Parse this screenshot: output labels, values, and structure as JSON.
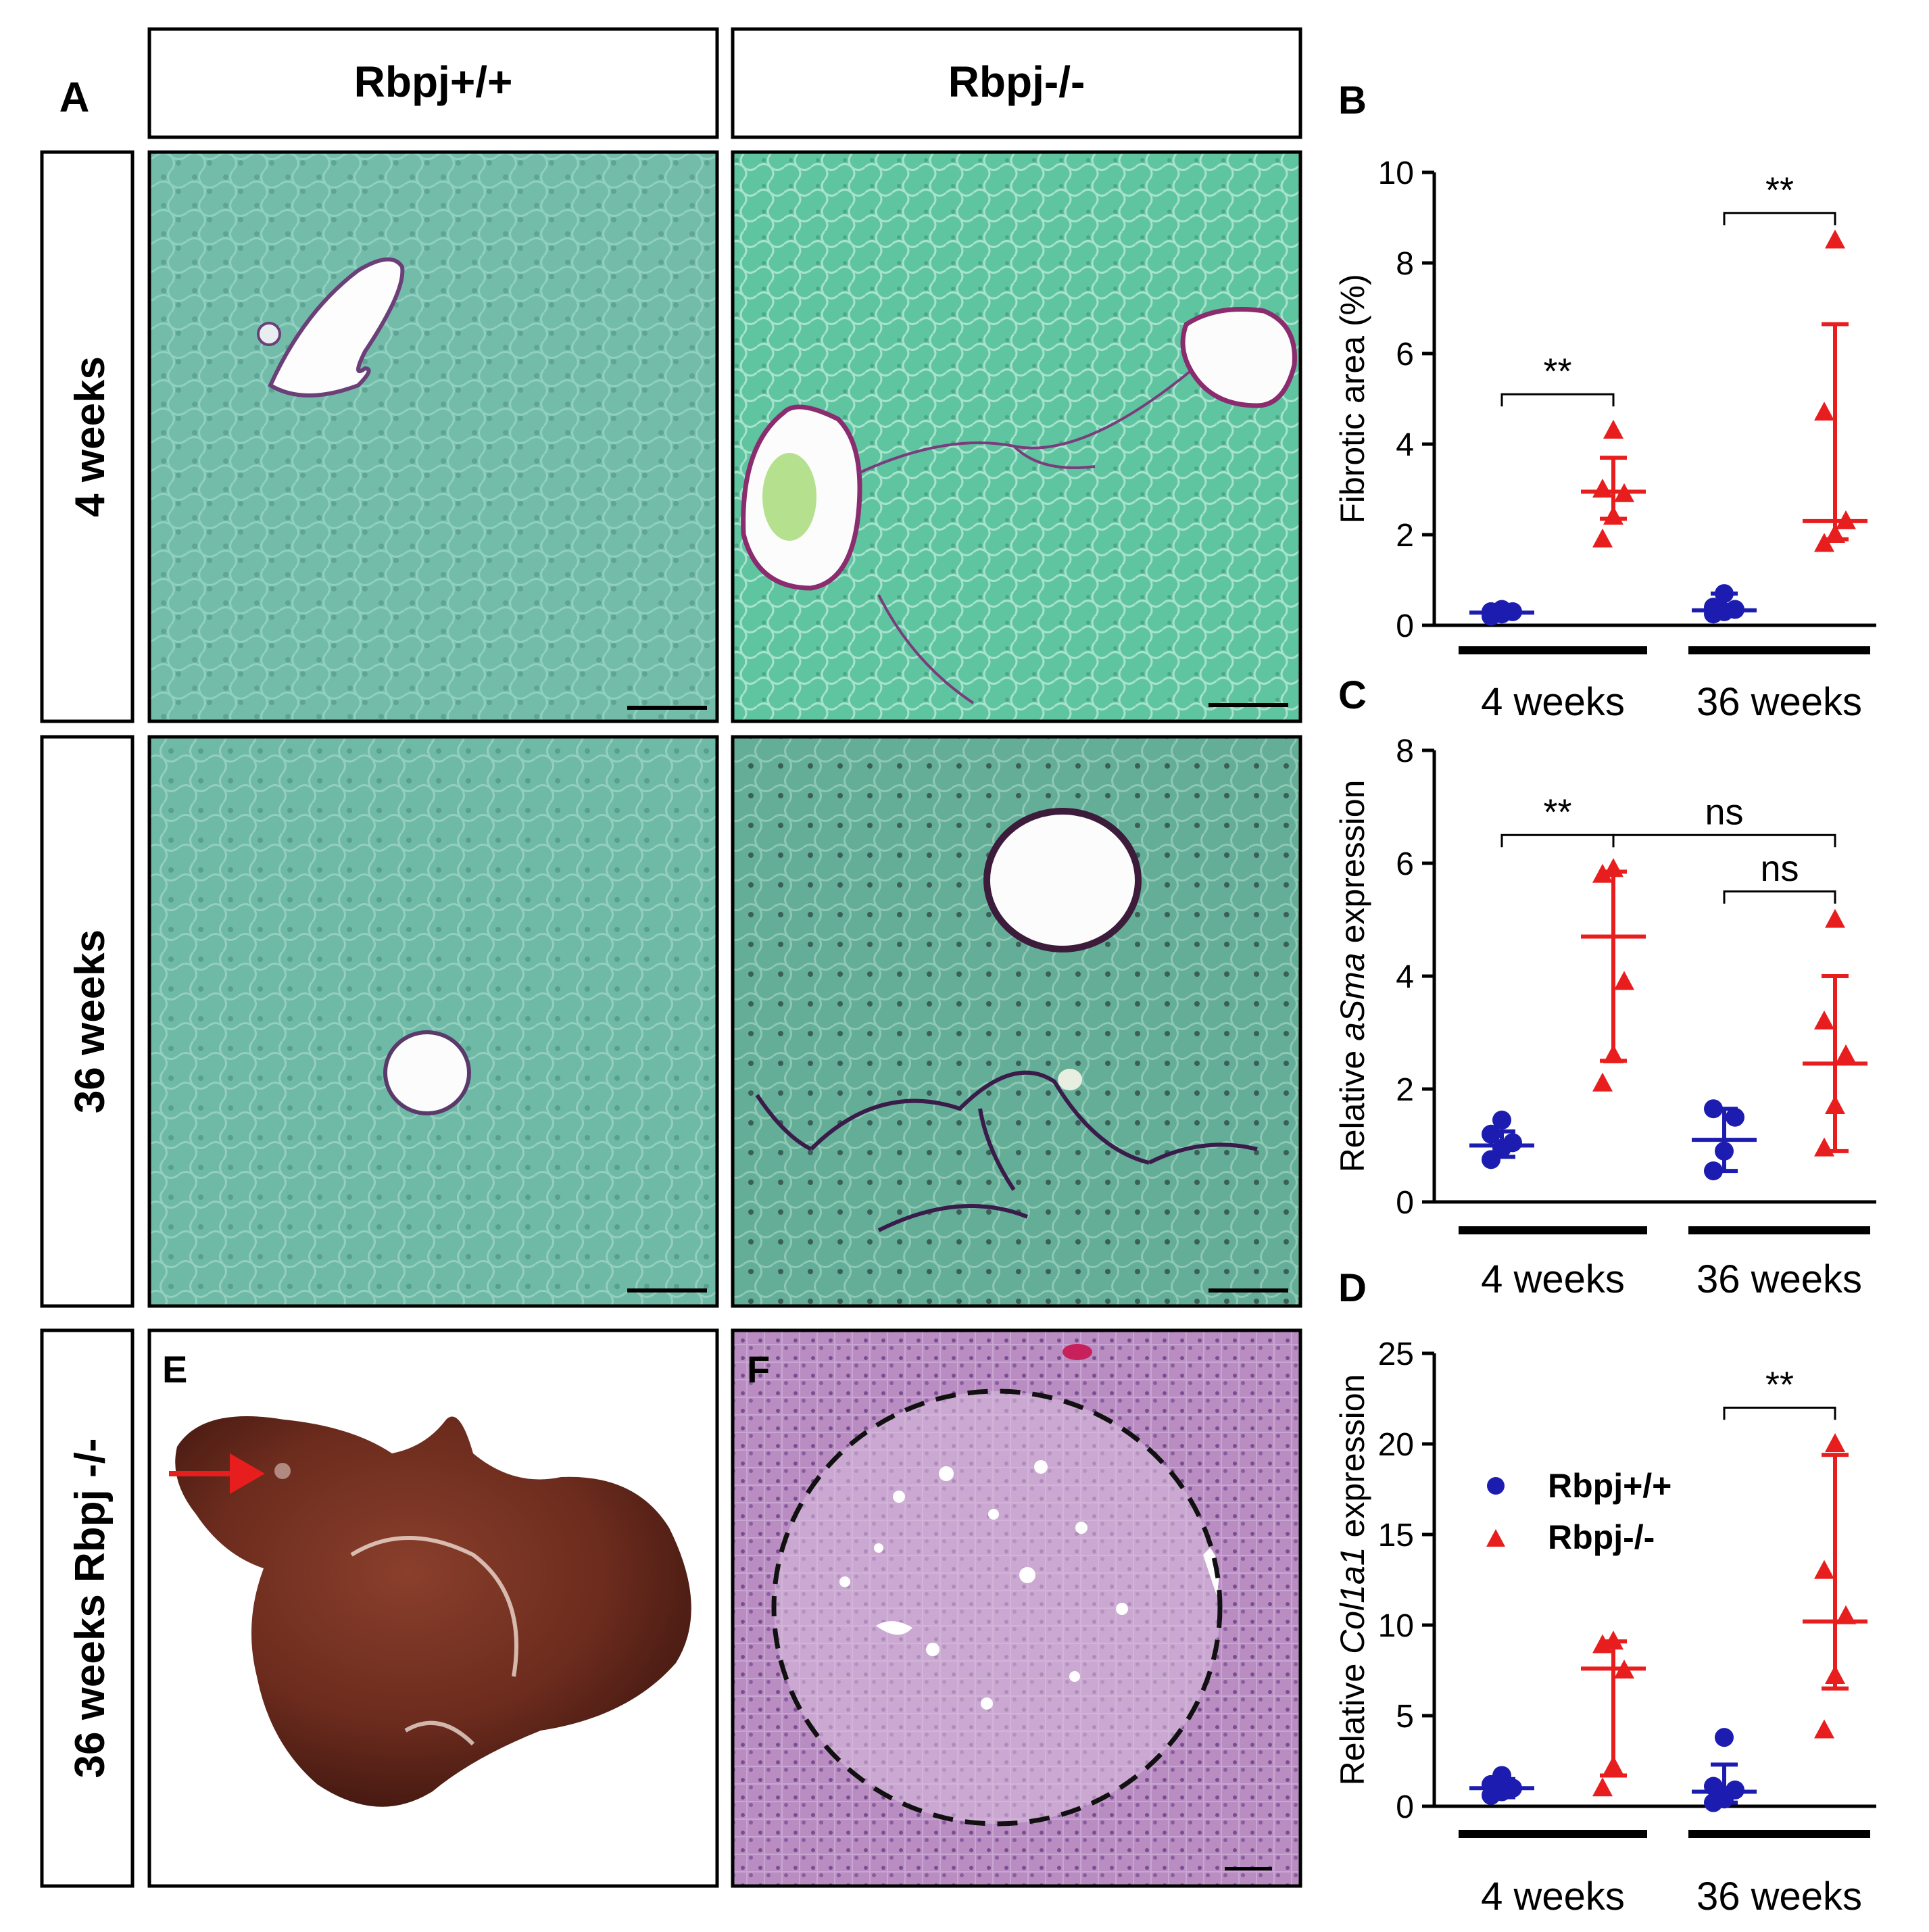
{
  "panel_letters": {
    "a": "A",
    "b": "B",
    "c": "C",
    "d": "D",
    "e": "E",
    "f": "F"
  },
  "column_headers": [
    "Rbpj+/+",
    "Rbpj-/-"
  ],
  "row_labels": [
    "4 weeks",
    "36 weeks",
    "36 weeks Rbpj -/-"
  ],
  "colors": {
    "wt": "#1c1cb0",
    "ko": "#e81e1e",
    "tissue": "#6fb9a6",
    "he": "#b080b8",
    "liver": "#6a2a1c"
  },
  "legend": {
    "wt": "Rbpj+/+",
    "ko": "Rbpj-/-"
  },
  "chart_data": [
    {
      "panel": "B",
      "type": "scatter",
      "ylabel": "Fibrotic area (%)",
      "ylim": [
        0,
        10
      ],
      "yticks": [
        "0",
        "2",
        "4",
        "6",
        "8",
        "10"
      ],
      "group_labels": [
        "4 weeks",
        "36 weeks"
      ],
      "series": [
        {
          "name": "Rbpj+/+",
          "groups": [
            {
              "points": [
                0.2,
                0.25,
                0.3,
                0.3,
                0.35
              ],
              "median": 0.28,
              "range": [
                0.2,
                0.35
              ]
            },
            {
              "points": [
                0.25,
                0.3,
                0.35,
                0.4,
                0.7
              ],
              "median": 0.33,
              "range": [
                0.25,
                0.7
              ]
            }
          ]
        },
        {
          "name": "Rbpj-/-",
          "groups": [
            {
              "points": [
                1.9,
                2.4,
                2.9,
                3.0,
                4.3
              ],
              "median": 2.95,
              "range": [
                2.35,
                3.7
              ]
            },
            {
              "points": [
                1.8,
                2.0,
                2.3,
                4.7,
                8.5
              ],
              "median": 2.3,
              "range": [
                1.9,
                6.65
              ]
            }
          ]
        }
      ],
      "significance": [
        {
          "between": [
            [
              0,
              0
            ],
            [
              0,
              1
            ]
          ],
          "label": "**",
          "y": 5.1
        },
        {
          "between": [
            [
              1,
              0
            ],
            [
              1,
              1
            ]
          ],
          "label": "**",
          "y": 9.1
        }
      ]
    },
    {
      "panel": "C",
      "type": "scatter",
      "ylabel_prefix": "Relative ",
      "ylabel_italic": "aSma",
      "ylabel_suffix": " expression",
      "ylim": [
        0,
        8
      ],
      "yticks": [
        "0",
        "2",
        "4",
        "6",
        "8"
      ],
      "group_labels": [
        "4 weeks",
        "36 weeks"
      ],
      "series": [
        {
          "name": "Rbpj+/+",
          "groups": [
            {
              "points": [
                0.75,
                0.95,
                1.05,
                1.2,
                1.45
              ],
              "median": 1.0,
              "range": [
                0.8,
                1.25
              ]
            },
            {
              "points": [
                0.55,
                0.9,
                1.5,
                1.65
              ],
              "median": 1.1,
              "range": [
                0.55,
                1.65
              ]
            }
          ]
        },
        {
          "name": "Rbpj-/-",
          "groups": [
            {
              "points": [
                2.1,
                2.6,
                3.9,
                5.8,
                5.9
              ],
              "median": 4.7,
              "range": [
                2.5,
                5.85
              ]
            },
            {
              "points": [
                0.95,
                1.7,
                2.6,
                3.2,
                5.0
              ],
              "median": 2.45,
              "range": [
                0.9,
                4.0
              ]
            }
          ]
        }
      ],
      "significance": [
        {
          "between": [
            [
              0,
              0
            ],
            [
              0,
              1
            ]
          ],
          "label": "**",
          "y": 6.5
        },
        {
          "between": [
            [
              0,
              1
            ],
            [
              1,
              1
            ]
          ],
          "label": "ns",
          "y": 6.5
        },
        {
          "between": [
            [
              1,
              0
            ],
            [
              1,
              1
            ]
          ],
          "label": "ns",
          "y": 5.5
        }
      ]
    },
    {
      "panel": "D",
      "type": "scatter",
      "ylabel_prefix": "Relative ",
      "ylabel_italic": "Col1a1",
      "ylabel_suffix": " expression",
      "ylim": [
        0,
        25
      ],
      "yticks": [
        "0",
        "5",
        "10",
        "15",
        "20",
        "25"
      ],
      "group_labels": [
        "4 weeks",
        "36 weeks"
      ],
      "series": [
        {
          "name": "Rbpj+/+",
          "groups": [
            {
              "points": [
                0.6,
                0.8,
                1.0,
                1.2,
                1.7
              ],
              "median": 1.0,
              "range": [
                0.5,
                1.5
              ]
            },
            {
              "points": [
                0.2,
                0.4,
                0.9,
                1.1,
                3.8
              ],
              "median": 0.8,
              "range": [
                0.2,
                2.3
              ]
            }
          ]
        },
        {
          "name": "Rbpj-/-",
          "groups": [
            {
              "points": [
                1.0,
                2.2,
                7.5,
                8.9,
                9.1
              ],
              "median": 7.6,
              "range": [
                1.7,
                9.1
              ]
            },
            {
              "points": [
                4.2,
                7.2,
                10.5,
                13.0,
                20.0
              ],
              "median": 10.2,
              "range": [
                6.5,
                19.4
              ]
            }
          ]
        }
      ],
      "significance": [
        {
          "between": [
            [
              1,
              0
            ],
            [
              1,
              1
            ]
          ],
          "label": "**",
          "y": 22.0
        }
      ]
    }
  ]
}
